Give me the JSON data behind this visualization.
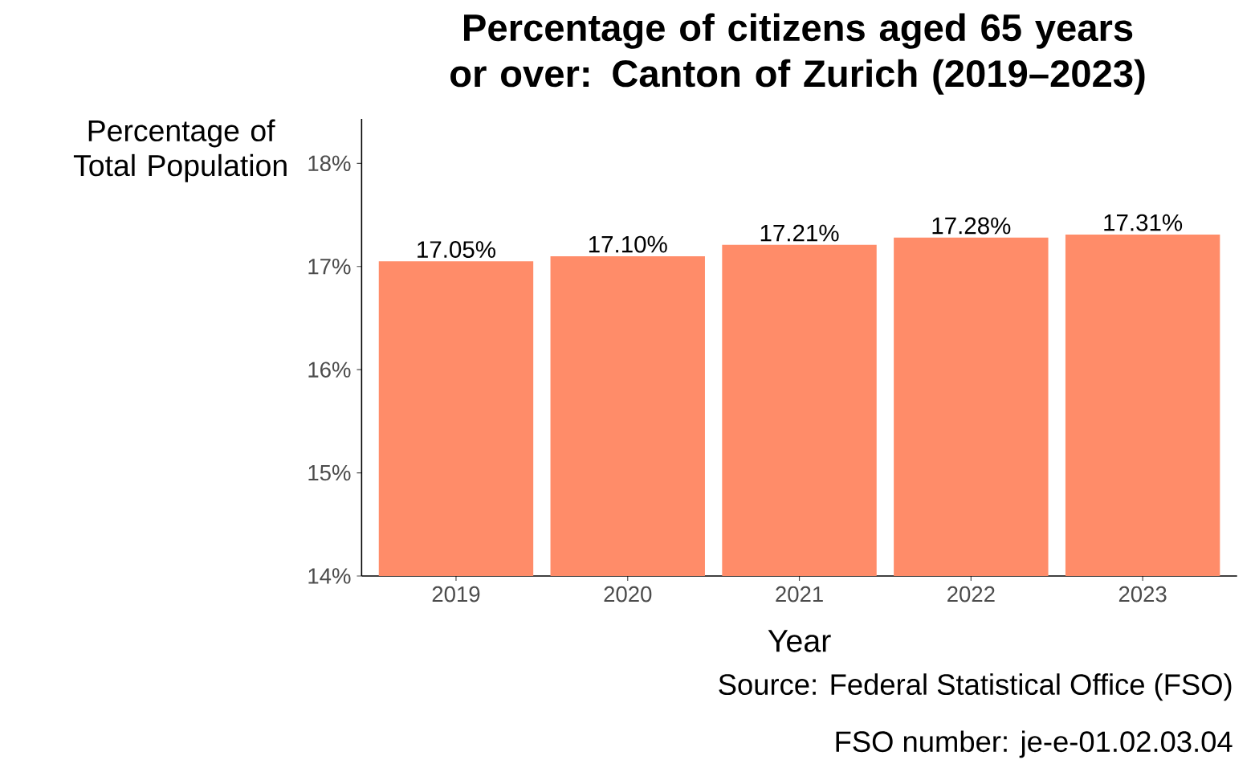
{
  "chart_data": {
    "type": "bar",
    "title": "Percentage of citizens aged 65 years or over: Canton of Zurich (2019–2023)",
    "xlabel": "Year",
    "ylabel": "Percentage of Total Population",
    "categories": [
      "2019",
      "2020",
      "2021",
      "2022",
      "2023"
    ],
    "values": [
      17.05,
      17.1,
      17.21,
      17.28,
      17.31
    ],
    "value_labels": [
      "17.05%",
      "17.10%",
      "17.21%",
      "17.28%",
      "17.31%"
    ],
    "color": "#ff8c69",
    "ylim": [
      14,
      18.43
    ],
    "yticks": [
      {
        "value": 14,
        "label": "14%"
      },
      {
        "value": 15,
        "label": "15%"
      },
      {
        "value": 16,
        "label": "16%"
      },
      {
        "value": 17,
        "label": "17%"
      },
      {
        "value": 18,
        "label": "18%"
      }
    ],
    "grid": false,
    "annotations": [
      "Source: Federal Statistical Office (FSO)",
      "FSO number: je-e-01.02.03.04"
    ]
  }
}
